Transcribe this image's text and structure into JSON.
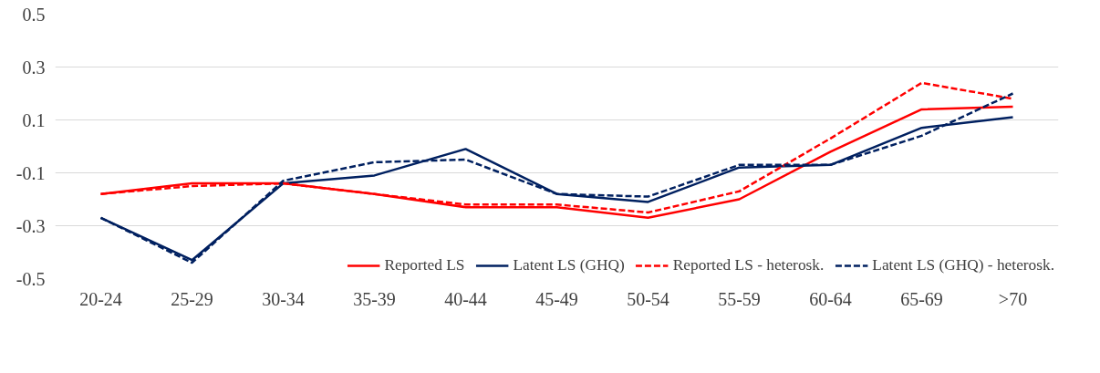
{
  "chart_data": {
    "type": "line",
    "categories": [
      "20-24",
      "25-29",
      "30-34",
      "35-39",
      "40-44",
      "45-49",
      "50-54",
      "55-59",
      "60-64",
      "65-69",
      ">70"
    ],
    "series": [
      {
        "name": "Reported LS",
        "color": "#ff0000",
        "line_style": "solid",
        "values": [
          -0.18,
          -0.14,
          -0.14,
          -0.18,
          -0.23,
          -0.23,
          -0.27,
          -0.2,
          -0.02,
          0.14,
          0.15
        ]
      },
      {
        "name": "Latent LS (GHQ)",
        "color": "#002060",
        "line_style": "solid",
        "values": [
          -0.27,
          -0.43,
          -0.14,
          -0.11,
          -0.01,
          -0.18,
          -0.21,
          -0.08,
          -0.07,
          0.07,
          0.11
        ]
      },
      {
        "name": "Reported LS - heterosk.",
        "color": "#ff0000",
        "line_style": "dashed",
        "values": [
          -0.18,
          -0.15,
          -0.14,
          -0.18,
          -0.22,
          -0.22,
          -0.25,
          -0.17,
          0.03,
          0.24,
          0.18
        ]
      },
      {
        "name": "Latent LS (GHQ) - heterosk.",
        "color": "#002060",
        "line_style": "dashed",
        "values": [
          -0.27,
          -0.44,
          -0.13,
          -0.06,
          -0.05,
          -0.18,
          -0.19,
          -0.07,
          -0.07,
          0.04,
          0.2
        ]
      }
    ],
    "ylim": [
      -0.5,
      0.5
    ],
    "yticks": [
      -0.5,
      -0.3,
      -0.1,
      0.1,
      0.3,
      0.5
    ],
    "grid": "y",
    "legend": "bottom"
  }
}
